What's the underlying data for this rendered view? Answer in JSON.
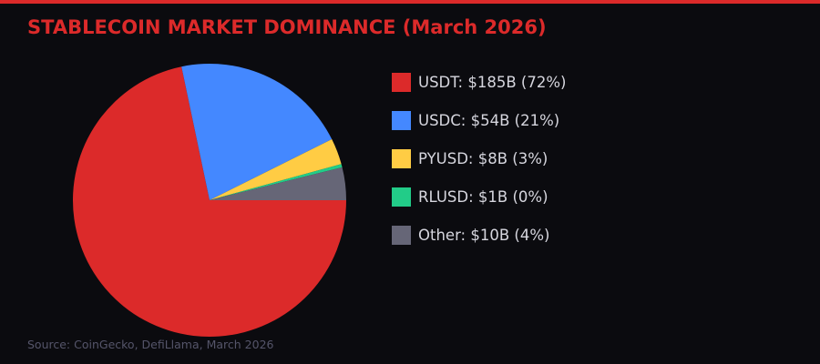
{
  "chart_data": {
    "type": "pie",
    "title": "STABLECOIN MARKET DOMINANCE (March 2026)",
    "categories": [
      "USDT",
      "USDC",
      "PYUSD",
      "RLUSD",
      "Other"
    ],
    "values": [
      185,
      54,
      8,
      1,
      10
    ],
    "unit": "$B",
    "legend_labels": [
      "USDT: $185B (72%)",
      "USDC: $54B (21%)",
      "PYUSD: $8B (3%)",
      "RLUSD: $1B (0%)",
      "Other: $10B (4%)"
    ],
    "colors": [
      "#dc2a2a",
      "#4488ff",
      "#ffcc44",
      "#22cc88",
      "#666677"
    ],
    "start_angle": 0,
    "direction": "clockwise",
    "legend_position": "right",
    "source": "Source: CoinGecko, DefiLlama, March 2026"
  },
  "theme": {
    "background": "#0b0b0f",
    "accent": "#dc2a2a"
  }
}
